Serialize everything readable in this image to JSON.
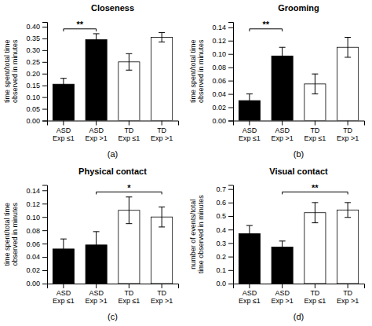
{
  "chart_data": [
    {
      "type": "bar",
      "title": "Closeness",
      "subtitle": "(a)",
      "y_label": "time spent/total time\nobserved in minutes",
      "categories": [
        "ASD\nExp ≤1",
        "ASD\nExp >1",
        "TD\nExp ≤1",
        "TD\nExp >1"
      ],
      "values": [
        0.155,
        0.345,
        0.25,
        0.355
      ],
      "errors": [
        0.025,
        0.025,
        0.035,
        0.02
      ],
      "colors": [
        "black",
        "black",
        "white",
        "white"
      ],
      "ylim": [
        0,
        0.42
      ],
      "yticks": [
        {
          "value": 0.0,
          "label": "0.00"
        },
        0.05,
        {
          "value": 0.1,
          "label": "0.10"
        },
        0.15,
        {
          "value": 0.2,
          "label": "0.20"
        },
        0.25,
        {
          "value": 0.3,
          "label": "0.30"
        },
        0.35,
        {
          "value": 0.4,
          "label": "0.40"
        }
      ],
      "annotations": [
        {
          "text": "**",
          "from": "ASD\nExp ≤1",
          "to": "ASD\nExp >1"
        }
      ]
    },
    {
      "type": "bar",
      "title": "Grooming",
      "subtitle": "(b)",
      "y_label": "time spent/total time\nobserved in minutes",
      "categories": [
        "ASD\nExp ≤1",
        "ASD\nExp >1",
        "TD\nExp ≤1",
        "TD\nExp >1"
      ],
      "values": [
        0.03,
        0.097,
        0.055,
        0.11
      ],
      "errors": [
        0.01,
        0.013,
        0.015,
        0.015
      ],
      "colors": [
        "black",
        "black",
        "white",
        "white"
      ],
      "ylim": [
        0,
        0.148
      ],
      "yticks": [
        {
          "value": 0.0,
          "label": "0.00"
        },
        0.02,
        0.04,
        0.06,
        0.08,
        {
          "value": 0.1,
          "label": "0.10"
        },
        0.12,
        0.14
      ],
      "annotations": [
        {
          "text": "**",
          "from": "ASD\nExp ≤1",
          "to": "ASD\nExp >1"
        }
      ]
    },
    {
      "type": "bar",
      "title": "Physical contact",
      "subtitle": "(c)",
      "y_label": "time spent/total time\nobserved in minutes",
      "categories": [
        "ASD\nExp ≤1",
        "ASD\nExp >1",
        "TD\nExp ≤1",
        "TD\nExp >1"
      ],
      "values": [
        0.052,
        0.058,
        0.11,
        0.1
      ],
      "errors": [
        0.015,
        0.02,
        0.02,
        0.015
      ],
      "colors": [
        "black",
        "black",
        "white",
        "white"
      ],
      "ylim": [
        0,
        0.148
      ],
      "yticks": [
        {
          "value": 0.0,
          "label": "0.00"
        },
        0.02,
        0.04,
        0.06,
        0.08,
        {
          "value": 0.1,
          "label": "0.10"
        },
        0.12,
        0.14
      ],
      "annotations": [
        {
          "text": "*",
          "from": "ASD\nExp >1",
          "to": "TD\nExp >1"
        }
      ]
    },
    {
      "type": "bar",
      "title": "Visual contact",
      "subtitle": "(d)",
      "y_label": "number of events/total\ntime observed in minutes",
      "categories": [
        "ASD\nExp ≤1",
        "ASD\nExp >1",
        "TD\nExp ≤1",
        "TD\nExp >1"
      ],
      "values": [
        0.37,
        0.27,
        0.525,
        0.545
      ],
      "errors": [
        0.06,
        0.045,
        0.075,
        0.055
      ],
      "colors": [
        "black",
        "black",
        "white",
        "white"
      ],
      "ylim": [
        0,
        0.73
      ],
      "yticks": [
        {
          "value": 0.0,
          "label": "0.0"
        },
        0.1,
        0.2,
        0.3,
        0.4,
        0.5,
        0.6,
        0.7
      ],
      "annotations": [
        {
          "text": "**",
          "from": "ASD\nExp >1",
          "to": "TD\nExp >1"
        }
      ]
    }
  ]
}
